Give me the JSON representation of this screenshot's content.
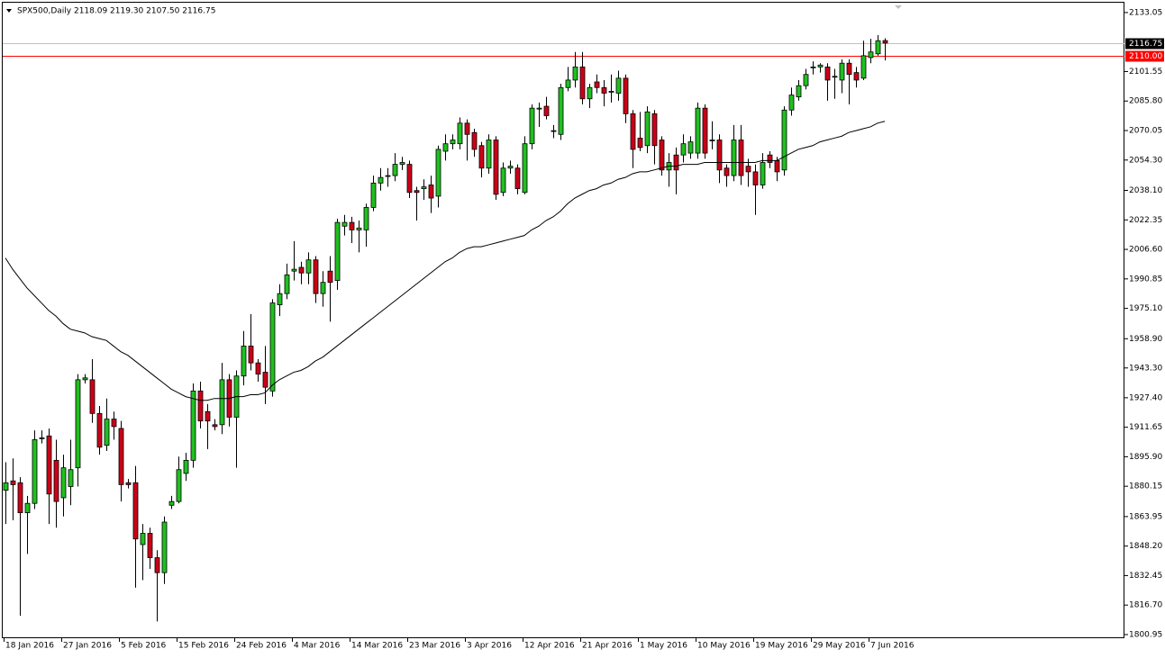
{
  "chart_data": {
    "type": "candlestick",
    "title": "SPX500,Daily  2118.09 2119.30 2107.50 2116.75",
    "categories": [
      "18 Jan 2016",
      null,
      null,
      null,
      null,
      null,
      null,
      null,
      "27 Jan 2016",
      null,
      null,
      null,
      null,
      null,
      null,
      null,
      "5 Feb 2016",
      null,
      null,
      null,
      null,
      null,
      null,
      null,
      "15 Feb 2016",
      null,
      null,
      null,
      null,
      null,
      null,
      null,
      "24 Feb 2016",
      null,
      null,
      null,
      null,
      null,
      null,
      null,
      "4 Mar 2016",
      null,
      null,
      null,
      null,
      null,
      null,
      null,
      "14 Mar 2016",
      null,
      null,
      null,
      null,
      null,
      null,
      null,
      "23 Mar 2016",
      null,
      null,
      null,
      null,
      null,
      null,
      null,
      "3 Apr 2016",
      null,
      null,
      null,
      null,
      null,
      null,
      null,
      "12 Apr 2016",
      null,
      null,
      null,
      null,
      null,
      null,
      null,
      "21 Apr 2016",
      null,
      null,
      null,
      null,
      null,
      null,
      null,
      "1 May 2016",
      null,
      null,
      null,
      null,
      null,
      null,
      null,
      "10 May 2016",
      null,
      null,
      null,
      null,
      null,
      null,
      null,
      "19 May 2016",
      null,
      null,
      null,
      null,
      null,
      null,
      null,
      "29 May 2016",
      null,
      null,
      null,
      null,
      null,
      null,
      null,
      "7 Jun 2016",
      null,
      null
    ],
    "open": [
      1878,
      1883,
      1882,
      1866,
      1871,
      1906,
      1907,
      1894,
      1874,
      1880,
      1890,
      1937,
      1937,
      1919,
      1902,
      1916,
      1911,
      1882,
      1882,
      1849,
      1855,
      1842,
      1834,
      1870,
      1872,
      1887,
      1894,
      1931,
      1920,
      1913,
      1913,
      1937,
      1917,
      1939,
      1955,
      1946,
      1941,
      1931,
      1977,
      1983,
      1995,
      1997,
      1994,
      2001,
      1983,
      1995,
      1990,
      2019,
      2021,
      2017,
      2017,
      2029,
      2042,
      2046,
      2046,
      2052,
      2052,
      2038,
      2039,
      2041,
      2035,
      2059,
      2063,
      2063,
      2074,
      2069,
      2062,
      2050,
      2065,
      2037,
      2050,
      2050,
      2037,
      2063,
      2082,
      2083,
      2070,
      2068,
      2093,
      2097,
      2104,
      2087,
      2096,
      2093,
      2091,
      2090,
      2098,
      2079,
      2066,
      2062,
      2079,
      2065,
      2049,
      2057,
      2057,
      2058,
      2058,
      2082,
      2065,
      2065,
      2050,
      2046,
      2065,
      2051,
      2048,
      2041,
      2057,
      2054,
      2049,
      2081,
      2088,
      2094,
      2104,
      2104,
      2104,
      2099,
      2097,
      2106,
      2101,
      2098,
      2109,
      2111,
      2118.09
    ],
    "high": [
      1893,
      1895,
      1885,
      1875,
      1910,
      1910,
      1911,
      1905,
      1897,
      1905,
      1940,
      1940,
      1948,
      1923,
      1927,
      1920,
      1915,
      1884,
      1891,
      1860,
      1858,
      1846,
      1864,
      1875,
      1896,
      1898,
      1935,
      1936,
      1924,
      1916,
      1946,
      1940,
      1942,
      1963,
      1972,
      1948,
      1955,
      1980,
      1988,
      1999,
      2011,
      2000,
      2005,
      2003,
      1995,
      2003,
      2023,
      2025,
      2024,
      2022,
      2031,
      2046,
      2050,
      2050,
      2058,
      2056,
      2054,
      2040,
      2044,
      2046,
      2062,
      2068,
      2068,
      2077,
      2076,
      2071,
      2064,
      2068,
      2067,
      2053,
      2054,
      2052,
      2067,
      2084,
      2085,
      2088,
      2073,
      2095,
      2104,
      2112,
      2112,
      2095,
      2100,
      2097,
      2100,
      2102,
      2100,
      2081,
      2080,
      2083,
      2081,
      2067,
      2058,
      2061,
      2068,
      2067,
      2085,
      2084,
      2075,
      2068,
      2052,
      2073,
      2073,
      2055,
      2052,
      2058,
      2059,
      2056,
      2083,
      2093,
      2097,
      2103,
      2107,
      2106,
      2106,
      2103,
      2108,
      2108,
      2104,
      2118,
      2119,
      2121,
      2119.3
    ],
    "low": [
      1860,
      1862,
      1811,
      1844,
      1868,
      1903,
      1860,
      1858,
      1864,
      1870,
      1880,
      1935,
      1914,
      1897,
      1899,
      1905,
      1872,
      1879,
      1826,
      1830,
      1836,
      1808,
      1828,
      1868,
      1871,
      1883,
      1890,
      1911,
      1900,
      1910,
      1908,
      1912,
      1890,
      1934,
      1942,
      1936,
      1924,
      1928,
      1971,
      1980,
      1990,
      1988,
      1988,
      1978,
      1976,
      1968,
      1985,
      2014,
      2010,
      2005,
      2008,
      2027,
      2038,
      2040,
      2043,
      2049,
      2034,
      2022,
      2033,
      2026,
      2029,
      2054,
      2060,
      2060,
      2054,
      2056,
      2045,
      2047,
      2033,
      2035,
      2047,
      2036,
      2036,
      2060,
      2072,
      2076,
      2066,
      2065,
      2091,
      2093,
      2084,
      2082,
      2090,
      2083,
      2085,
      2086,
      2074,
      2050,
      2059,
      2058,
      2052,
      2046,
      2040,
      2036,
      2053,
      2055,
      2055,
      2055,
      2060,
      2042,
      2040,
      2043,
      2041,
      2040,
      2025,
      2039,
      2050,
      2043,
      2046,
      2078,
      2086,
      2092,
      2100,
      2101,
      2086,
      2087,
      2090,
      2084,
      2093,
      2097,
      2106,
      2110,
      2107.5
    ],
    "close": [
      1882,
      1881,
      1866,
      1871,
      1905,
      1906,
      1876,
      1872,
      1890,
      1889,
      1937,
      1938,
      1919,
      1901,
      1916,
      1912,
      1881,
      1881,
      1852,
      1855,
      1842,
      1834,
      1861,
      1872,
      1889,
      1894,
      1931,
      1915,
      1915,
      1912,
      1937,
      1917,
      1939,
      1955,
      1946,
      1940,
      1933,
      1978,
      1983,
      1993,
      1996,
      1994,
      2001,
      1983,
      1989,
      1989,
      2021,
      2021,
      2017,
      2018,
      2029,
      2042,
      2045,
      2046,
      2052,
      2053,
      2037,
      2037,
      2040,
      2034,
      2060,
      2063,
      2065,
      2074,
      2068,
      2060,
      2050,
      2065,
      2036,
      2050,
      2051,
      2039,
      2063,
      2082,
      2082,
      2078,
      2070,
      2093,
      2097,
      2104,
      2087,
      2093,
      2093,
      2090,
      2091,
      2098,
      2079,
      2060,
      2061,
      2080,
      2062,
      2049,
      2053,
      2049,
      2063,
      2064,
      2082,
      2058,
      2065,
      2049,
      2046,
      2065,
      2046,
      2048,
      2041,
      2053,
      2053,
      2048,
      2081,
      2089,
      2094,
      2100,
      2104,
      2105,
      2097,
      2099,
      2106,
      2100,
      2097,
      2110,
      2112,
      2118,
      2116.75
    ],
    "ma": [
      2002,
      1996,
      1991,
      1986,
      1982,
      1978,
      1974,
      1971,
      1967,
      1964,
      1963,
      1962,
      1960,
      1959,
      1958,
      1955,
      1952,
      1950,
      1947,
      1944,
      1941,
      1938,
      1935,
      1932,
      1930,
      1928,
      1927,
      1926,
      1926,
      1927,
      1927,
      1927,
      1928,
      1928,
      1929,
      1929,
      1930,
      1934,
      1937,
      1939,
      1941,
      1942,
      1944,
      1947,
      1949,
      1952,
      1955,
      1958,
      1961,
      1964,
      1967,
      1970,
      1973,
      1976,
      1979,
      1982,
      1985,
      1988,
      1991,
      1994,
      1997,
      2000,
      2002,
      2005,
      2007,
      2008,
      2008,
      2009,
      2010,
      2011,
      2012,
      2013,
      2014,
      2017,
      2019,
      2022,
      2024,
      2027,
      2031,
      2034,
      2036,
      2038,
      2039,
      2041,
      2042,
      2044,
      2045,
      2047,
      2048,
      2048,
      2049,
      2050,
      2051,
      2051,
      2052,
      2052,
      2052,
      2053,
      2053,
      2053,
      2053,
      2053,
      2053,
      2053,
      2053,
      2054,
      2054,
      2054,
      2056,
      2058,
      2060,
      2061,
      2062,
      2064,
      2065,
      2066,
      2067,
      2069,
      2070,
      2071,
      2072,
      2074,
      2075
    ],
    "up_color": "#20c020",
    "down_color": "#cc0018",
    "ma_color": "#000000",
    "ylim": [
      1799.5,
      2138.3
    ],
    "yticks": [
      2133.05,
      2101.55,
      {
        "value": 2085.8,
        "label": "2085.80"
      },
      2070.05,
      {
        "value": 2054.3,
        "label": "2054.30"
      },
      {
        "value": 2038.1,
        "label": "2038.10"
      },
      2022.35,
      {
        "value": 2006.6,
        "label": "2006.60"
      },
      1990.85,
      {
        "value": 1975.1,
        "label": "1975.10"
      },
      {
        "value": 1958.9,
        "label": "1958.90"
      },
      {
        "value": 1943.3,
        "label": "1943.30"
      },
      {
        "value": 1927.4,
        "label": "1927.40"
      },
      1911.65,
      {
        "value": 1895.9,
        "label": "1895.90"
      },
      1880.15,
      1863.95,
      {
        "value": 1848.2,
        "label": "1848.20"
      },
      1832.45,
      {
        "value": 1816.7,
        "label": "1816.70"
      },
      1800.95
    ],
    "hline": {
      "value": 2110,
      "label": "2110.00",
      "color": "#ff0000"
    },
    "bid_line": {
      "value": 2116.75,
      "label": "2116.75",
      "color": "#c0c0c0"
    }
  }
}
